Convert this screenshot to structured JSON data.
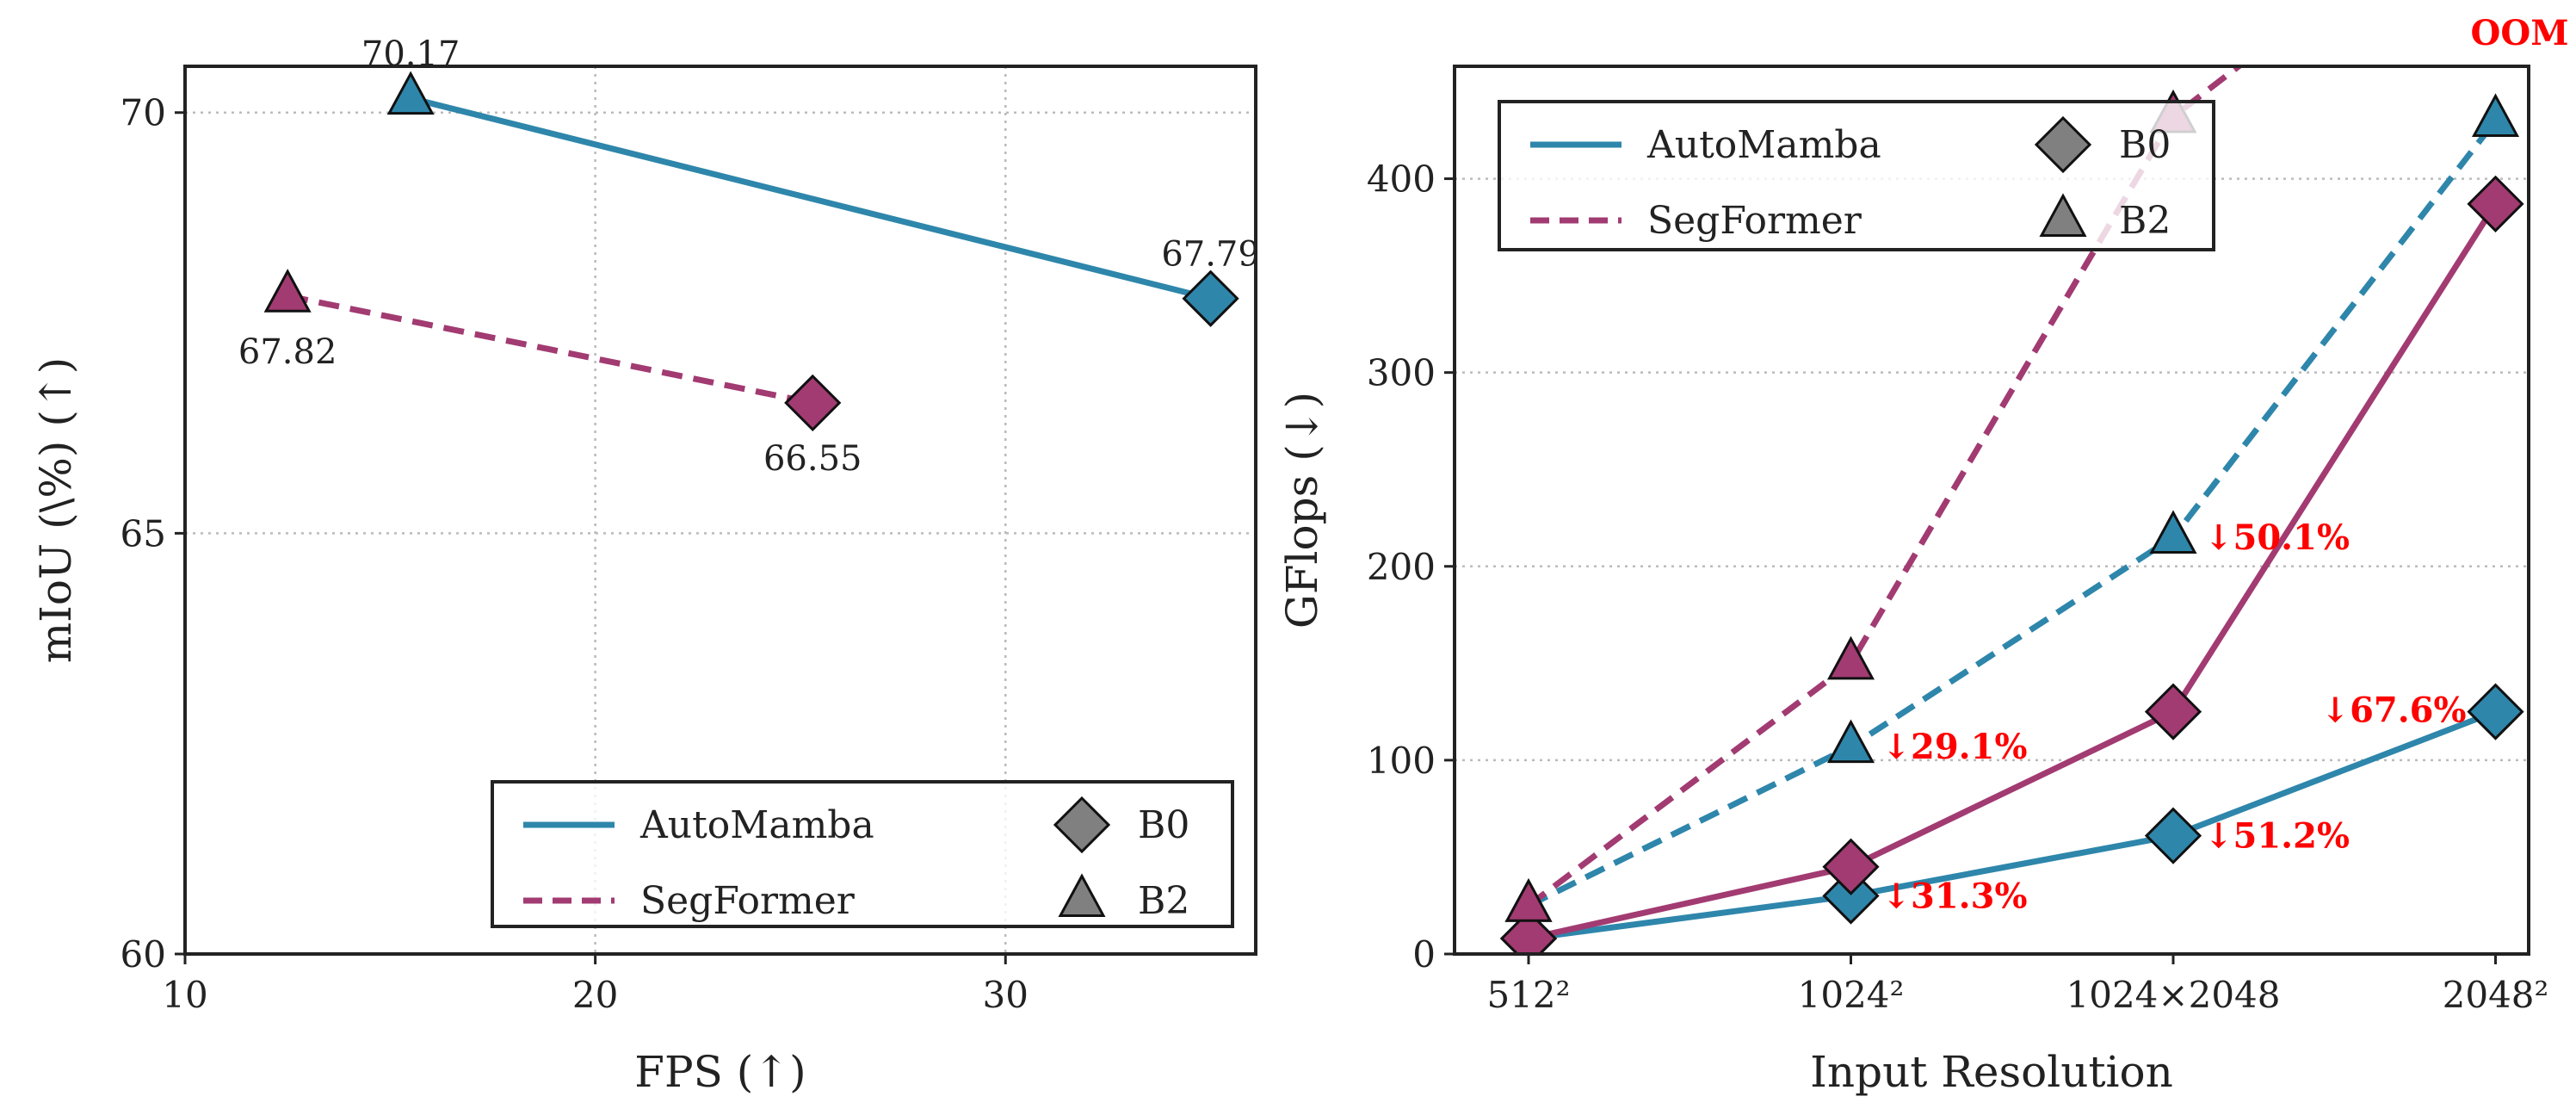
{
  "colors": {
    "automamba": "#2E86AB",
    "segformer": "#A23B72",
    "marker_legend": "#808080",
    "annotation": "#FF0000"
  },
  "chart_data": [
    {
      "type": "line",
      "xlabel": "FPS (↑)",
      "ylabel": "mIoU (\\%) (↑)",
      "xlim": [
        10,
        36.1
      ],
      "ylim": [
        60,
        70.55
      ],
      "xticks": [
        10,
        20,
        30
      ],
      "yticks": [
        60,
        65,
        70
      ],
      "grid": true,
      "legend_placement": "lower-right",
      "legend": {
        "series": [
          "AutoMamba",
          "SegFormer"
        ],
        "markers": [
          "B0",
          "B2"
        ]
      },
      "series": [
        {
          "name": "AutoMamba",
          "style": "solid",
          "points": [
            {
              "variant": "B2",
              "x": 15.5,
              "y": 70.17,
              "label": "70.17"
            },
            {
              "variant": "B0",
              "x": 35.0,
              "y": 67.79,
              "label": "67.79"
            }
          ]
        },
        {
          "name": "SegFormer",
          "style": "dashed",
          "points": [
            {
              "variant": "B2",
              "x": 12.5,
              "y": 67.82,
              "label": "67.82"
            },
            {
              "variant": "B0",
              "x": 25.3,
              "y": 66.55,
              "label": "66.55"
            }
          ]
        }
      ]
    },
    {
      "type": "line",
      "xlabel": "Input Resolution",
      "ylabel": "GFlops (↓)",
      "categories": [
        "512²",
        "1024²",
        "1024×2048",
        "2048²"
      ],
      "ylim": [
        0,
        458
      ],
      "yticks": [
        0,
        100,
        200,
        300,
        400
      ],
      "grid": true,
      "legend_placement": "upper-left",
      "legend": {
        "series": [
          "AutoMamba",
          "SegFormer"
        ],
        "markers": [
          "B0",
          "B2"
        ]
      },
      "series": [
        {
          "name": "AutoMamba",
          "variant": "B0",
          "style": "solid",
          "values": [
            8,
            30,
            61,
            125
          ]
        },
        {
          "name": "AutoMamba",
          "variant": "B2",
          "style": "dashed",
          "values": [
            25,
            107,
            215,
            430
          ]
        },
        {
          "name": "SegFormer",
          "variant": "B0",
          "style": "solid",
          "values": [
            8,
            45,
            125,
            387
          ]
        },
        {
          "name": "SegFormer",
          "variant": "B2",
          "style": "dashed",
          "values": [
            25,
            150,
            432,
            560
          ]
        }
      ],
      "annotations": [
        {
          "text": "↓31.3%",
          "category": 1,
          "y": 30
        },
        {
          "text": "↓29.1%",
          "category": 1,
          "y": 107
        },
        {
          "text": "↓51.2%",
          "category": 2,
          "y": 61
        },
        {
          "text": "↓50.1%",
          "category": 2,
          "y": 215
        },
        {
          "text": "↓67.6%",
          "category": 3,
          "y": 125
        },
        {
          "text": "OOM",
          "category": 3,
          "y": 458
        }
      ]
    }
  ]
}
